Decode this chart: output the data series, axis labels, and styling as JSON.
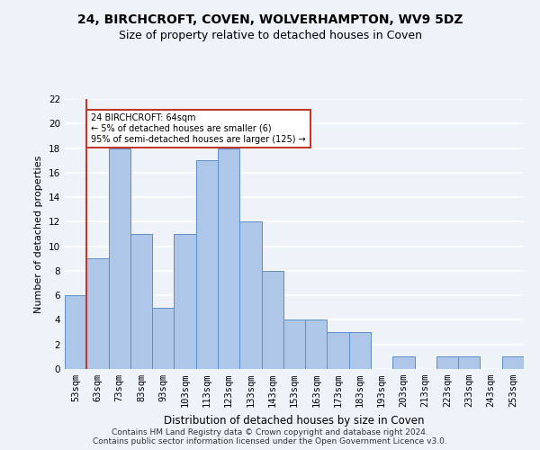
{
  "title1": "24, BIRCHCROFT, COVEN, WOLVERHAMPTON, WV9 5DZ",
  "title2": "Size of property relative to detached houses in Coven",
  "xlabel": "Distribution of detached houses by size in Coven",
  "ylabel": "Number of detached properties",
  "categories": [
    "53sqm",
    "63sqm",
    "73sqm",
    "83sqm",
    "93sqm",
    "103sqm",
    "113sqm",
    "123sqm",
    "133sqm",
    "143sqm",
    "153sqm",
    "163sqm",
    "173sqm",
    "183sqm",
    "193sqm",
    "203sqm",
    "213sqm",
    "223sqm",
    "233sqm",
    "243sqm",
    "253sqm"
  ],
  "values": [
    6,
    9,
    18,
    11,
    5,
    11,
    17,
    18,
    12,
    8,
    4,
    4,
    3,
    3,
    0,
    1,
    0,
    1,
    1,
    0,
    1
  ],
  "bar_color": "#aec6e8",
  "bar_edge_color": "#5b8fc9",
  "vline_x_index": 1,
  "vline_color": "#c0392b",
  "annotation_text": "24 BIRCHCROFT: 64sqm\n← 5% of detached houses are smaller (6)\n95% of semi-detached houses are larger (125) →",
  "annotation_box_color": "#c0392b",
  "annotation_fill": "white",
  "ylim": [
    0,
    22
  ],
  "yticks": [
    0,
    2,
    4,
    6,
    8,
    10,
    12,
    14,
    16,
    18,
    20,
    22
  ],
  "footer1": "Contains HM Land Registry data © Crown copyright and database right 2024.",
  "footer2": "Contains public sector information licensed under the Open Government Licence v3.0.",
  "background_color": "#eef2f9",
  "grid_color": "#ffffff",
  "title1_fontsize": 10,
  "title2_fontsize": 9,
  "xlabel_fontsize": 8.5,
  "ylabel_fontsize": 8,
  "tick_fontsize": 7.5,
  "footer_fontsize": 6.5,
  "annotation_fontsize": 7
}
